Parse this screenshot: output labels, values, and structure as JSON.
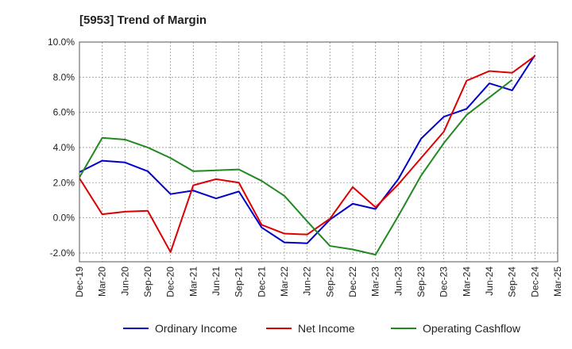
{
  "chart_data": {
    "type": "line",
    "title": "[5953]  Trend of Margin",
    "xlabel": "",
    "ylabel": "",
    "x": [
      "Dec-19",
      "Mar-20",
      "Jun-20",
      "Sep-20",
      "Dec-20",
      "Mar-21",
      "Jun-21",
      "Sep-21",
      "Dec-21",
      "Mar-22",
      "Jun-22",
      "Sep-22",
      "Dec-22",
      "Mar-23",
      "Jun-23",
      "Sep-23",
      "Dec-23",
      "Mar-24",
      "Jun-24",
      "Sep-24",
      "Dec-24",
      "Mar-25"
    ],
    "ylim": [
      -2.5,
      10.0
    ],
    "yticks": [
      -2.0,
      0.0,
      2.0,
      4.0,
      6.0,
      8.0,
      10.0
    ],
    "ytick_labels": [
      "-2.0%",
      "0.0%",
      "2.0%",
      "4.0%",
      "6.0%",
      "8.0%",
      "10.0%"
    ],
    "grid": true,
    "legend_position": "bottom",
    "series": [
      {
        "name": "Ordinary Income",
        "color": "#0000cc",
        "values": [
          2.6,
          3.25,
          3.15,
          2.65,
          1.35,
          1.55,
          1.1,
          1.5,
          -0.55,
          -1.4,
          -1.45,
          -0.1,
          0.8,
          0.5,
          2.2,
          4.5,
          5.75,
          6.2,
          7.65,
          7.25,
          9.25,
          null
        ]
      },
      {
        "name": "Net Income",
        "color": "#dd0000",
        "values": [
          2.25,
          0.2,
          0.35,
          0.4,
          -1.95,
          1.85,
          2.2,
          2.0,
          -0.4,
          -0.9,
          -0.95,
          -0.05,
          1.75,
          0.6,
          1.9,
          3.4,
          4.9,
          7.8,
          8.35,
          8.25,
          9.2,
          null
        ]
      },
      {
        "name": "Operating Cashflow",
        "color": "#228822",
        "values": [
          2.3,
          4.55,
          4.45,
          4.0,
          3.4,
          2.65,
          2.7,
          2.75,
          2.1,
          1.25,
          -0.2,
          -1.6,
          -1.8,
          -2.1,
          0.1,
          2.4,
          4.25,
          5.85,
          6.85,
          7.85,
          null,
          null
        ]
      }
    ]
  }
}
